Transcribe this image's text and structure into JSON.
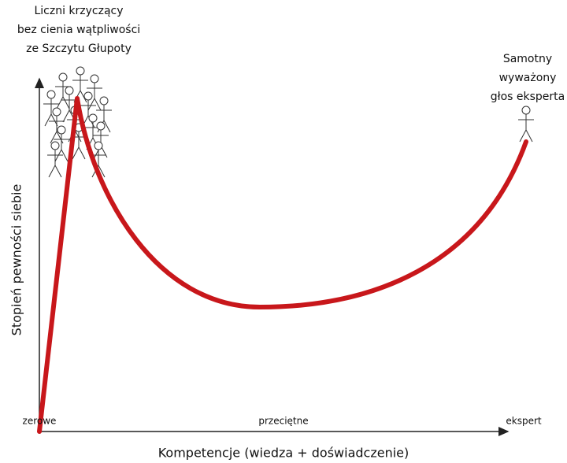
{
  "annotations": {
    "crowd": [
      "Liczni krzyczący",
      "bez cienia wątpliwości",
      "ze Szczytu Głupoty"
    ],
    "expert": [
      "Samotny",
      "wyważony",
      "głos eksperta"
    ]
  },
  "y_axis": {
    "title": "Stopień pewności siebie"
  },
  "x_axis": {
    "title": "Kompetencje (wiedza + doświadczenie)",
    "labels": [
      "zerowe",
      "przeciętne",
      "ekspert"
    ]
  }
}
